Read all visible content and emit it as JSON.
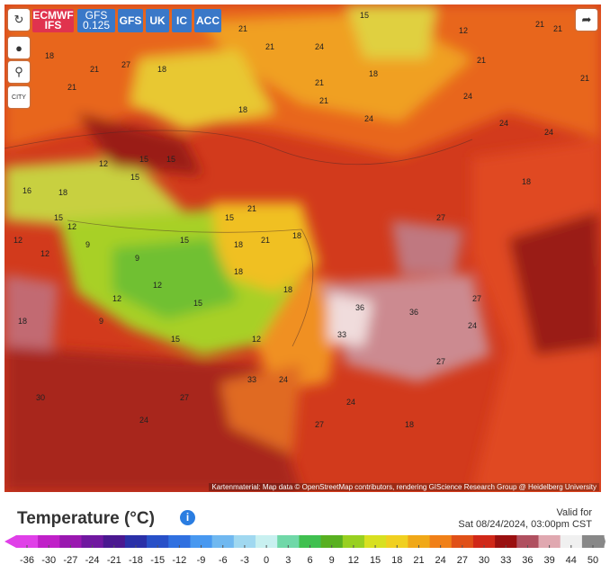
{
  "toolbar": {
    "models": [
      "ECMWF IFS",
      "GFS 0.125",
      "GFS",
      "UK",
      "IC",
      "ACC"
    ],
    "city": "CITY"
  },
  "map": {
    "attribution": "Kartenmaterial: Map data © OpenStreetMap contributors, rendering GIScience Research Group @ Heidelberg University",
    "labels": [
      "15",
      "21",
      "12",
      "21",
      "18",
      "24",
      "21",
      "21",
      "18",
      "24",
      "24",
      "27",
      "21",
      "18",
      "21",
      "21",
      "21",
      "18",
      "21",
      "24",
      "24",
      "18",
      "21",
      "15",
      "15",
      "12",
      "15",
      "18",
      "16",
      "15",
      "21",
      "12",
      "15",
      "18",
      "12",
      "9",
      "21",
      "18",
      "12",
      "9",
      "18",
      "15",
      "12",
      "12",
      "15",
      "18",
      "9",
      "15",
      "12",
      "18",
      "36",
      "36",
      "33",
      "24",
      "27",
      "27",
      "24",
      "27",
      "33",
      "30",
      "27",
      "24",
      "27",
      "18",
      "24"
    ]
  },
  "legend": {
    "title": "Temperature (°C)",
    "valid_label": "Valid for",
    "valid_time": "Sat 08/24/2024, 03:00pm CST",
    "ticks": [
      -36,
      -30,
      -27,
      -24,
      -21,
      -18,
      -15,
      -12,
      -9,
      -6,
      -3,
      0,
      3,
      6,
      9,
      12,
      15,
      18,
      21,
      24,
      27,
      30,
      33,
      36,
      39,
      44,
      50
    ],
    "colors": [
      "#e040e8",
      "#c020c8",
      "#9a18b0",
      "#7018a0",
      "#4a1890",
      "#2a30a8",
      "#2850c8",
      "#3070e0",
      "#4898f0",
      "#70b8f0",
      "#a0d8f0",
      "#c8f0f0",
      "#70d8a8",
      "#40c050",
      "#58b020",
      "#98d020",
      "#d8e020",
      "#f0d020",
      "#f0a818",
      "#f08018",
      "#e05018",
      "#d02818",
      "#9a1010",
      "#b05060",
      "#e0a8b0",
      "#f0f0f0",
      "#888888"
    ]
  }
}
